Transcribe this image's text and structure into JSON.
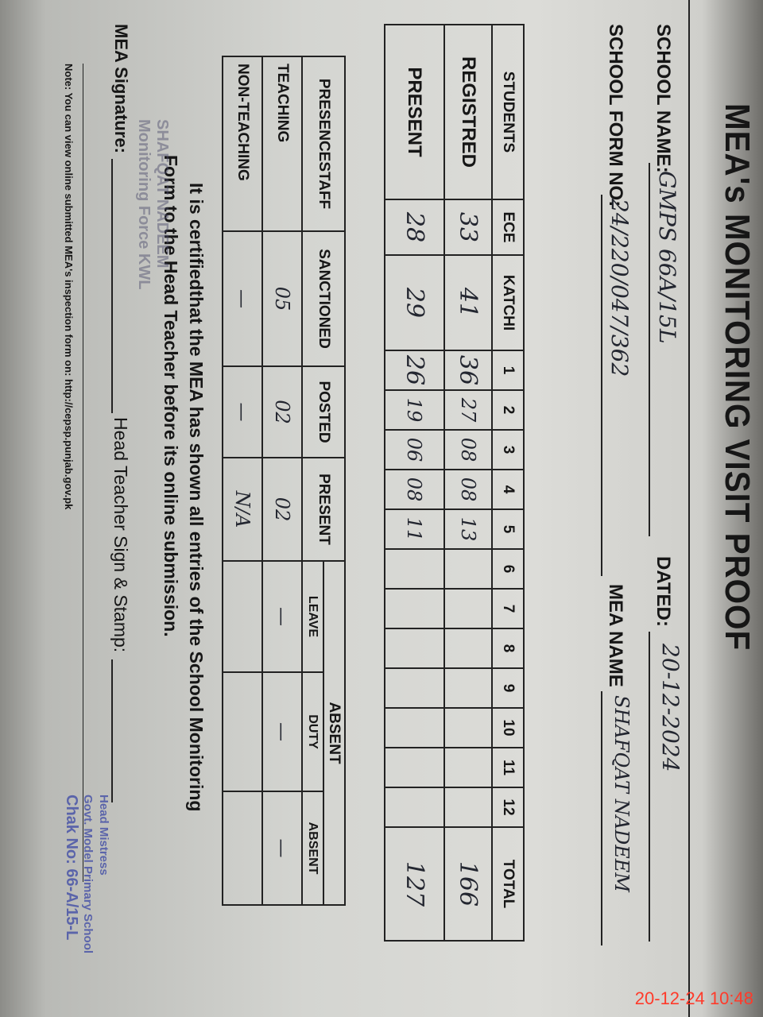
{
  "title": "MEA's MONITORING VISIT PROOF",
  "header": {
    "school_name_label": "SCHOOL NAME:",
    "school_name": "GMPS 66A/15L",
    "date_label": "DATED:",
    "date": "20-12-2024",
    "form_no_label": "SCHOOL FORM NO:",
    "form_no": "24/220/047/362",
    "mea_name_label": "MEA NAME",
    "mea_name": "SHAFQAT NADEEM"
  },
  "students_table": {
    "columns": [
      "STUDENTS",
      "ECE",
      "KATCHI",
      "1",
      "2",
      "3",
      "4",
      "5",
      "6",
      "7",
      "8",
      "9",
      "10",
      "11",
      "12",
      "TOTAL"
    ],
    "rows": [
      {
        "label": "REGISTRED",
        "values": [
          "33",
          "41",
          "36",
          "27",
          "08",
          "08",
          "13",
          "",
          "",
          "",
          "",
          "",
          "",
          "",
          "166"
        ]
      },
      {
        "label": "PRESENT",
        "values": [
          "28",
          "29",
          "26",
          "19",
          "06",
          "08",
          "11",
          "",
          "",
          "",
          "",
          "",
          "",
          "",
          "127"
        ]
      }
    ]
  },
  "staff_table": {
    "columns": [
      "PRESENCESTAFF",
      "SANCTIONED",
      "POSTED",
      "PRESENT"
    ],
    "absent_group": "ABSENT",
    "absent_columns": [
      "LEAVE",
      "DUTY",
      "ABSENT"
    ],
    "rows": [
      {
        "label": "TEACHING",
        "values": [
          "05",
          "02",
          "02",
          "—",
          "—",
          "—"
        ]
      },
      {
        "label": "NON-TEACHING",
        "values": [
          "—",
          "—",
          "N/A",
          "",
          "",
          ""
        ]
      }
    ]
  },
  "certification": {
    "line1": "It is certifiedthat the MEA has shown all entries of the School Monitoring",
    "line2": "Form to the Head Teacher before its online submission."
  },
  "signatures": {
    "mea_label": "MEA Signature:",
    "head_label": "Head Teacher Sign & Stamp:",
    "mea_stamp": [
      "SHAFQAT NADEEM",
      "Monitoring Force KWL"
    ],
    "head_stamp": [
      "Head Mistress",
      "Govt. Model Primary School",
      "Chak No: 66-A/15-L"
    ]
  },
  "note": "Note: You can view online submitted MEA's inspection form on: http://cepsp.punjab.gov.pk",
  "timestamp": "20-12-24  10:48",
  "colors": {
    "ink": "#232630",
    "stamp": "#4a55a8",
    "timestamp": "#ff3a2a"
  }
}
